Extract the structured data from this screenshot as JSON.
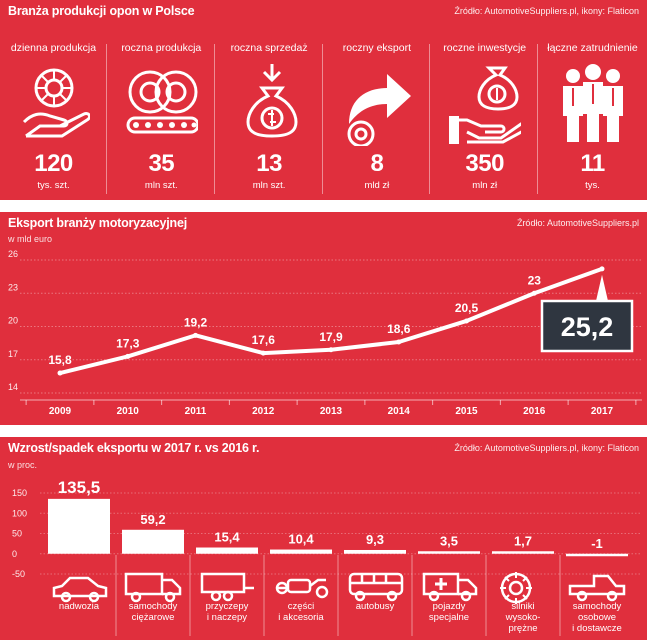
{
  "panel1": {
    "title": "Branża produkcji opon w Polsce",
    "source": "Źródło: AutomotiveSuppliers.pl, ikony: Flaticon",
    "stats": [
      {
        "label": "dzienna produkcja",
        "value": "120",
        "unit": "tys. szt.",
        "icon": "tire-in-hand-icon"
      },
      {
        "label": "roczna produkcja",
        "value": "35",
        "unit": "mln szt.",
        "icon": "tires-on-conveyor-icon"
      },
      {
        "label": "roczna sprzedaż",
        "value": "13",
        "unit": "mln szt.",
        "icon": "money-bag-icon"
      },
      {
        "label": "roczny eksport",
        "value": "8",
        "unit": "mld zł",
        "icon": "export-arrow-tire-icon"
      },
      {
        "label": "roczne inwestycje",
        "value": "350",
        "unit": "mln zł",
        "icon": "money-bag-in-hand-icon"
      },
      {
        "label": "łączne zatrudnienie",
        "value": "11",
        "unit": "tys.",
        "icon": "workers-group-icon"
      }
    ]
  },
  "chart_data": [
    {
      "type": "line",
      "title": "Eksport branży motoryzacyjnej",
      "subtitle": "w mld euro",
      "source": "Źródło: AutomotiveSuppliers.pl",
      "x": [
        "2009",
        "2010",
        "2011",
        "2012",
        "2013",
        "2014",
        "2015",
        "2016",
        "2017"
      ],
      "values": [
        15.8,
        17.3,
        19.2,
        17.6,
        17.9,
        18.6,
        20.5,
        23,
        25.2
      ],
      "labels": [
        "15,8",
        "17,3",
        "19,2",
        "17,6",
        "17,9",
        "18,6",
        "20,5",
        "23",
        "25,2"
      ],
      "ylim": [
        14,
        26
      ],
      "yticks": [
        26,
        23,
        20,
        17,
        14
      ],
      "highlight_last": true,
      "grid": true
    },
    {
      "type": "bar",
      "title": "Wzrost/spadek eksportu w 2017 r. vs 2016 r.",
      "subtitle": "w proc.",
      "source": "Źródło: AutomotiveSuppliers.pl, ikony: Flaticon",
      "categories": [
        "nadwozia",
        "samochody ciężarowe",
        "przyczepy i naczepy",
        "części i akcesoria",
        "autobusy",
        "pojazdy specjalne",
        "silniki wysoko-prężne",
        "samochody osobowe i dostawcze"
      ],
      "category_lines": [
        [
          "nadwozia"
        ],
        [
          "samochody",
          "ciężarowe"
        ],
        [
          "przyczepy",
          "i naczepy"
        ],
        [
          "części",
          "i akcesoria"
        ],
        [
          "autobusy"
        ],
        [
          "pojazdy",
          "specjalne"
        ],
        [
          "silniki",
          "wysoko-",
          "prężne"
        ],
        [
          "samochody",
          "osobowe",
          "i dostawcze"
        ]
      ],
      "values": [
        135.5,
        59.2,
        15.4,
        10.4,
        9.3,
        3.5,
        1.7,
        -1
      ],
      "labels": [
        "135,5",
        "59,2",
        "15,4",
        "10,4",
        "9,3",
        "3,5",
        "1,7",
        "-1"
      ],
      "icons": [
        "car-icon",
        "truck-icon",
        "trailer-icon",
        "car-parts-icon",
        "bus-icon",
        "ambulance-icon",
        "engine-icon",
        "pickup-icon"
      ],
      "ylim": [
        -50,
        150
      ],
      "yticks": [
        150,
        100,
        50,
        0,
        -50
      ],
      "grid": true
    }
  ]
}
